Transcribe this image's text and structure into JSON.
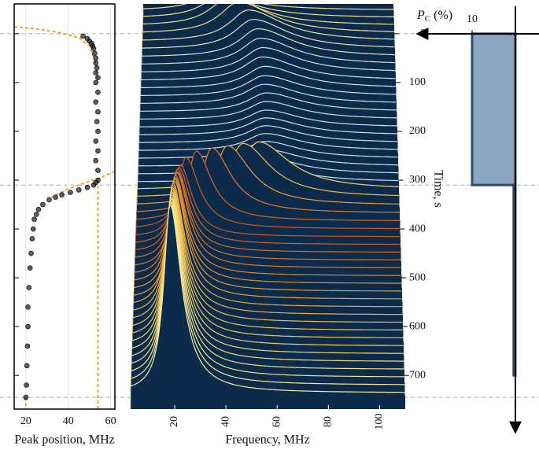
{
  "chart_data": [
    {
      "type": "scatter",
      "xlabel": "Peak position, MHz",
      "xlim": [
        14.5,
        62
      ],
      "xticks": [
        20,
        40,
        60
      ],
      "ylim": [
        -61,
        769
      ],
      "yticks": [
        0,
        100,
        200,
        300,
        400,
        500,
        600,
        700
      ],
      "grid": true,
      "color": "#1a1a1a",
      "x": [
        47,
        49,
        50,
        51,
        51.5,
        52,
        52.5,
        53,
        53,
        53.5,
        53,
        54,
        53,
        54,
        53,
        54,
        53.5,
        54,
        53,
        54,
        53,
        54,
        54,
        53,
        52,
        49,
        45,
        41,
        37,
        34,
        31,
        28,
        26,
        25,
        24,
        23.5,
        23,
        22.5,
        22,
        21.5,
        21,
        21,
        20.8,
        20.5,
        20.3,
        20
      ],
      "y": [
        5,
        10,
        15,
        20,
        25,
        30,
        40,
        50,
        60,
        70,
        80,
        90,
        100,
        120,
        140,
        160,
        180,
        200,
        220,
        240,
        260,
        280,
        300,
        305,
        310,
        315,
        320,
        325,
        330,
        335,
        340,
        350,
        360,
        370,
        380,
        400,
        420,
        450,
        480,
        520,
        560,
        600,
        640,
        680,
        720,
        745
      ],
      "fits": [
        {
          "color": "#f0a030",
          "x": [
            14.5,
            25,
            35,
            45,
            50,
            53,
            54
          ],
          "y": [
            -14,
            -10,
            -3,
            8,
            25,
            60,
            100
          ]
        },
        {
          "color": "#f0a030",
          "x": [
            62,
            55,
            48,
            40,
            32
          ],
          "y": [
            282,
            295,
            305,
            318,
            335
          ]
        },
        {
          "color": "#f0a030",
          "x": [
            54,
            54
          ],
          "y": [
            300,
            769
          ]
        },
        {
          "color": "#f0a030",
          "x": [
            20,
            20
          ],
          "y": [
            745,
            769
          ]
        }
      ]
    },
    {
      "type": "waterfall",
      "xlabel": "Frequency, MHz",
      "ylabel": "Time, s",
      "xlim": [
        2.5,
        110
      ],
      "xticks": [
        20,
        40,
        60,
        80,
        100
      ],
      "ylim": [
        -61,
        769
      ],
      "yticks": [
        0,
        100,
        200,
        300,
        400,
        500,
        600,
        700
      ],
      "reference_lines": [
        0,
        310,
        745
      ],
      "background": "#0c2a4a",
      "traces": {
        "time": [
          -48,
          -32,
          -16,
          0,
          16,
          32,
          48,
          64,
          80,
          96,
          112,
          128,
          144,
          160,
          176,
          192,
          208,
          224,
          240,
          256,
          272,
          288,
          304,
          320,
          336,
          352,
          368,
          384,
          400,
          416,
          432,
          448,
          464,
          480,
          496,
          512,
          528,
          544,
          560,
          576,
          592,
          608,
          624,
          640,
          656,
          672,
          688,
          704,
          720,
          736
        ],
        "peak": [
          30,
          33,
          36,
          40,
          44,
          46,
          48,
          49,
          50,
          50,
          51,
          51,
          51,
          52,
          52,
          52,
          52,
          52,
          52,
          52,
          52,
          52,
          52,
          50,
          44,
          38,
          32,
          26,
          22,
          20,
          19.5,
          19,
          19,
          19,
          18.5,
          18.5,
          18.5,
          18.5,
          18,
          18,
          18,
          18,
          18,
          18,
          18,
          18,
          18,
          18,
          18,
          18
        ],
        "height": [
          20,
          28,
          35,
          40,
          40,
          38,
          36,
          34,
          32,
          30,
          28,
          26,
          25,
          24,
          23,
          22,
          22,
          22,
          22,
          22,
          22,
          22,
          22,
          61,
          69,
          76,
          83,
          89,
          91,
          91,
          98,
          106,
          113,
          121,
          128,
          135,
          143,
          150,
          158,
          165,
          172,
          180,
          187,
          195,
          202,
          209,
          217,
          224,
          232,
          239
        ],
        "width": [
          9,
          9,
          9,
          9,
          9,
          9,
          9,
          9,
          9,
          9,
          9,
          9,
          9,
          9,
          9,
          9,
          9,
          9,
          9,
          9,
          9,
          9,
          9,
          8,
          7,
          6,
          5,
          4,
          3.5,
          3,
          3,
          3,
          3,
          3,
          3,
          3,
          3,
          3,
          3,
          3,
          3,
          3,
          3,
          3,
          3,
          3,
          3,
          3,
          3,
          3
        ],
        "color": [
          "#f3df8c",
          "#f3df8c",
          "#f3df8c",
          "#f3df8c",
          "#efe3a0",
          "#e8e4b0",
          "#dfe2c0",
          "#d6e0d0",
          "#cfe0ea",
          "#cfe0ea",
          "#cfe0ea",
          "#cfe0ea",
          "#cfe0ea",
          "#cfe0ea",
          "#cfe0ea",
          "#cfe0ea",
          "#cfe0ea",
          "#cfe0ea",
          "#cfe0ea",
          "#cfe0ea",
          "#cfe0ea",
          "#cfe0ea",
          "#cfe0ea",
          "#f2d46a",
          "#f0c050",
          "#ec9a3a",
          "#e57a2a",
          "#d9641e",
          "#cf5a1c",
          "#d45a1a",
          "#d8621c",
          "#db6b1f",
          "#de7422",
          "#e17d26",
          "#e4862a",
          "#e68f2f",
          "#e99834",
          "#eba13a",
          "#eda941",
          "#efb248",
          "#f0ba50",
          "#f2c258",
          "#f3c961",
          "#f4d06a",
          "#f5d673",
          "#f5db7d",
          "#f6e087",
          "#f6e491",
          "#f6e89b",
          "#f6eba5"
        ]
      }
    },
    {
      "type": "step",
      "xlabel": {
        "main": "P",
        "sub": "C",
        "unit": "(%)"
      },
      "xlim": [
        0,
        10
      ],
      "xticks": [
        10
      ],
      "ylim": [
        -61,
        769
      ],
      "fill": "#8aa5c0",
      "stroke": "#2d4a66",
      "segments": [
        {
          "start": 0,
          "end": 310,
          "value": 10
        },
        {
          "start": 310,
          "end": 700,
          "value": 0.4
        }
      ]
    }
  ]
}
